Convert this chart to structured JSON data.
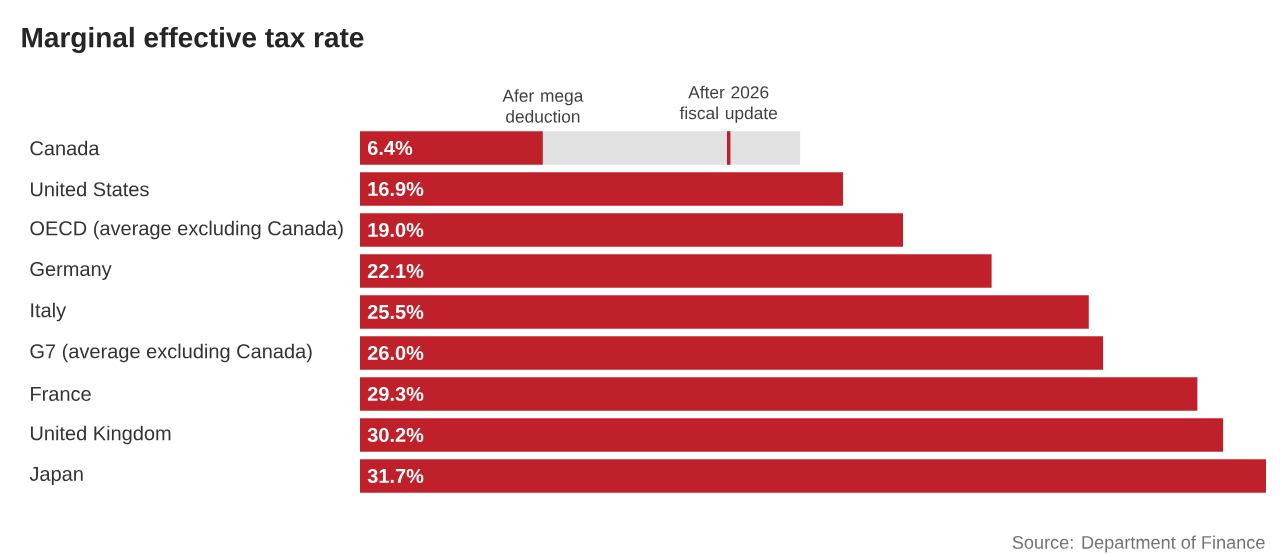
{
  "chart_data": {
    "type": "bar",
    "orientation": "horizontal",
    "stacked": true,
    "title": "Marginal effective tax rate",
    "categories": [
      "Canada",
      "United States",
      "OECD (average excluding Canada)",
      "Germany",
      "Italy",
      "G7 (average excluding Canada)",
      "France",
      "United Kingdom",
      "Japan"
    ],
    "series": [
      {
        "color": "#c0202a",
        "values": [
          6.4,
          16.9,
          19.0,
          22.1,
          25.5,
          26.0,
          29.3,
          30.2,
          31.7
        ],
        "value_labels": [
          "6.4%",
          "16.9%",
          "19.0%",
          "22.1%",
          "25.5%",
          "26.0%",
          "29.3%",
          "30.2%",
          "31.7%"
        ]
      },
      {
        "color": "#e2e2e2",
        "values": [
          9.0,
          null,
          null,
          null,
          null,
          null,
          null,
          null,
          null
        ]
      }
    ],
    "ref_lines": [
      {
        "axis": "x",
        "value": 12.9,
        "label": "After 2026 fiscal update",
        "color": "#c0202a"
      }
    ],
    "annotations": [
      {
        "text": "Afer mega deduction",
        "x": 6.4,
        "y": "Canada"
      },
      "Source: Department of Finance"
    ]
  }
}
